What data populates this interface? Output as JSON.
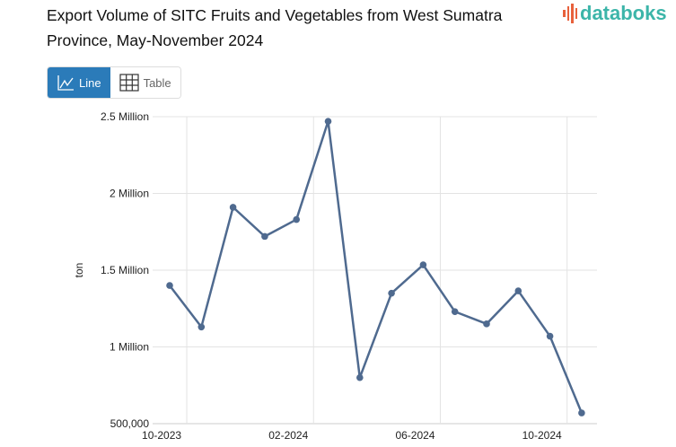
{
  "title": "Export Volume of SITC Fruits and Vegetables from West Sumatra Province, May-November 2024",
  "brand": "databoks",
  "toggle": {
    "line_label": "Line",
    "table_label": "Table"
  },
  "colors": {
    "line": "#4f6a8f",
    "active": "#2b7bb9",
    "brand": "#3cb5a9",
    "brand_mark": "#e8613c"
  },
  "chart_data": {
    "type": "line",
    "title": "Export Volume of SITC Fruits and Vegetables from West Sumatra Province, May-November 2024",
    "xlabel": "",
    "ylabel": "ton",
    "x": [
      "09-2023",
      "10-2023",
      "11-2023",
      "12-2023",
      "01-2024",
      "02-2024",
      "03-2024",
      "04-2024",
      "05-2024",
      "06-2024",
      "07-2024",
      "08-2024",
      "09-2024",
      "10-2024"
    ],
    "values": [
      1400000,
      1130000,
      1910000,
      1720000,
      1830000,
      2470000,
      800000,
      1350000,
      1535000,
      1230000,
      1150000,
      1365000,
      1070000,
      570000
    ],
    "ylim": [
      500000,
      2500000
    ],
    "yticks": [
      {
        "v": 500000,
        "label": "500,000"
      },
      {
        "v": 1000000,
        "label": "1 Million"
      },
      {
        "v": 1500000,
        "label": "1.5 Million"
      },
      {
        "v": 2000000,
        "label": "2 Million"
      },
      {
        "v": 2500000,
        "label": "2.5 Million"
      }
    ],
    "xticks": [
      {
        "i": 1,
        "label": "10-2023"
      },
      {
        "i": 5,
        "label": "02-2024"
      },
      {
        "i": 9,
        "label": "06-2024"
      },
      {
        "i": 13,
        "label": "10-2024"
      }
    ],
    "grid": true,
    "legend": "none"
  }
}
